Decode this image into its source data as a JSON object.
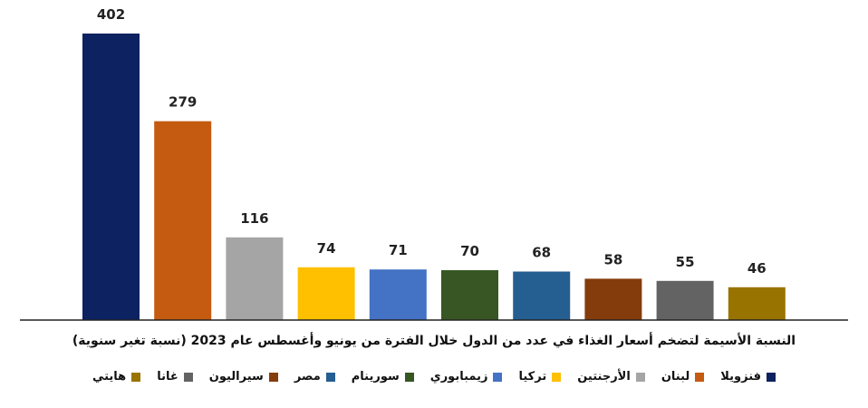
{
  "chart_data": {
    "type": "bar",
    "categories": [
      "فنزويلا",
      "لبنان",
      "الأرجنتين",
      "تركيا",
      "زيمبابوري",
      "سورينام",
      "مصر",
      "سيراليون",
      "غانا",
      "هايتي"
    ],
    "values": [
      402,
      279,
      116,
      74,
      71,
      70,
      68,
      58,
      55,
      46
    ],
    "colors": [
      "#0d2260",
      "#c55a11",
      "#a5a5a5",
      "#ffc000",
      "#4472c4",
      "#375623",
      "#255e91",
      "#843c0c",
      "#636363",
      "#997300"
    ],
    "title": "النسبة الأسيمة لتضخم أسعار الغذاء في عدد من الدول خلال الفترة من يونيو وأغسطس عام 2023 (نسبة تغير سنوية)",
    "xlabel": "",
    "ylabel": "",
    "ylim": [
      0,
      402
    ],
    "grid": false,
    "legend_position": "bottom",
    "data_labels": true
  }
}
